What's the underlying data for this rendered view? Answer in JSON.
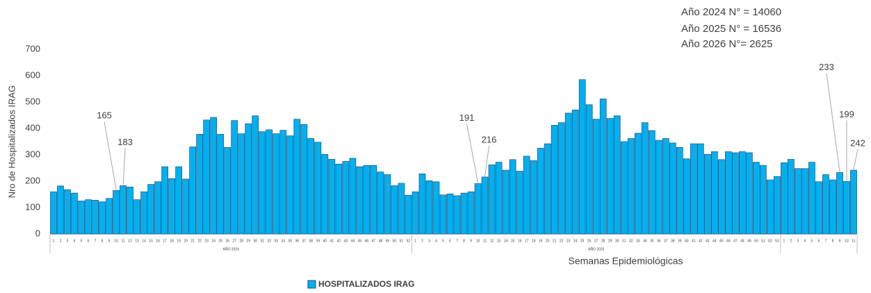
{
  "chart_data": {
    "type": "bar",
    "notes": [
      "Año 2024 N° = 14060",
      "Año 2025 N° = 16536",
      "Año 2026 N°= 2625"
    ],
    "y_label": "Nro de Hospitalizados IRAG",
    "x_label": "Semanas Epidemiológicas",
    "legend": "HOSPITALIZADOS IRAG",
    "color": "#00b0f0",
    "ylim": [
      0,
      700
    ],
    "yticks": [
      0,
      100,
      200,
      300,
      400,
      500,
      600,
      700
    ],
    "groups": [
      {
        "name": "AÑO 2024",
        "categories": [
          "1",
          "2",
          "3",
          "4",
          "5",
          "6",
          "7",
          "8",
          "9",
          "10",
          "11",
          "12",
          "13",
          "14",
          "15",
          "16",
          "17",
          "18",
          "19",
          "20",
          "21",
          "22",
          "23",
          "24",
          "25",
          "26",
          "27",
          "28",
          "29",
          "30",
          "31",
          "32",
          "33",
          "34",
          "35",
          "36",
          "37",
          "38",
          "39",
          "40",
          "41",
          "42",
          "43",
          "44",
          "45",
          "46",
          "47",
          "48",
          "49",
          "50",
          "51",
          "52"
        ],
        "values": [
          160,
          182,
          168,
          155,
          125,
          130,
          128,
          122,
          135,
          165,
          183,
          178,
          130,
          160,
          188,
          198,
          255,
          210,
          255,
          208,
          330,
          378,
          432,
          442,
          378,
          328,
          430,
          380,
          418,
          448,
          388,
          395,
          380,
          393,
          372,
          435,
          415,
          362,
          348,
          302,
          283,
          265,
          275,
          287,
          255,
          260,
          260,
          235,
          225,
          183,
          192,
          147
        ],
        "value_labels": [
          null,
          null,
          null,
          null,
          null,
          null,
          null,
          null,
          null,
          "165",
          "183",
          null,
          null,
          null,
          null,
          null,
          null,
          null,
          null,
          null,
          null,
          null,
          null,
          null,
          null,
          null,
          null,
          null,
          null,
          null,
          null,
          null,
          null,
          null,
          null,
          null,
          null,
          null,
          null,
          null,
          null,
          null,
          null,
          null,
          null,
          null,
          null,
          null,
          null,
          null,
          null,
          null
        ]
      },
      {
        "name": "AÑO 2025",
        "categories": [
          "1",
          "2",
          "3",
          "4",
          "5",
          "6",
          "7",
          "8",
          "9",
          "10",
          "11",
          "12",
          "13",
          "14",
          "15",
          "16",
          "17",
          "18",
          "19",
          "20",
          "21",
          "22",
          "23",
          "24",
          "25",
          "26",
          "27",
          "28",
          "29",
          "30",
          "31",
          "32",
          "33",
          "34",
          "35",
          "36",
          "37",
          "38",
          "39",
          "40",
          "41",
          "42",
          "43",
          "44",
          "45",
          "46",
          "47",
          "48",
          "49",
          "50",
          "51",
          "52",
          "53"
        ],
        "values": [
          160,
          228,
          202,
          198,
          148,
          152,
          145,
          155,
          160,
          191,
          216,
          262,
          272,
          242,
          282,
          238,
          295,
          278,
          325,
          342,
          412,
          422,
          458,
          470,
          585,
          490,
          435,
          512,
          438,
          448,
          350,
          362,
          382,
          422,
          392,
          355,
          362,
          345,
          328,
          285,
          342,
          342,
          302,
          312,
          282,
          312,
          308,
          312,
          308,
          272,
          260,
          205,
          218
        ],
        "value_labels": [
          null,
          null,
          null,
          null,
          null,
          null,
          null,
          null,
          null,
          "191",
          "216",
          null,
          null,
          null,
          null,
          null,
          null,
          null,
          null,
          null,
          null,
          null,
          null,
          null,
          null,
          null,
          null,
          null,
          null,
          null,
          null,
          null,
          null,
          null,
          null,
          null,
          null,
          null,
          null,
          null,
          null,
          null,
          null,
          null,
          null,
          null,
          null,
          null,
          null,
          null,
          null,
          null,
          null
        ]
      },
      {
        "name": null,
        "categories": [
          "1",
          "2",
          "3",
          "4",
          "5",
          "6",
          "7",
          "8",
          "9",
          "10",
          "11"
        ],
        "values": [
          270,
          283,
          248,
          248,
          272,
          198,
          225,
          205,
          233,
          199,
          242
        ],
        "value_labels": [
          null,
          null,
          null,
          null,
          null,
          null,
          null,
          null,
          "233",
          "199",
          "242"
        ]
      }
    ]
  }
}
